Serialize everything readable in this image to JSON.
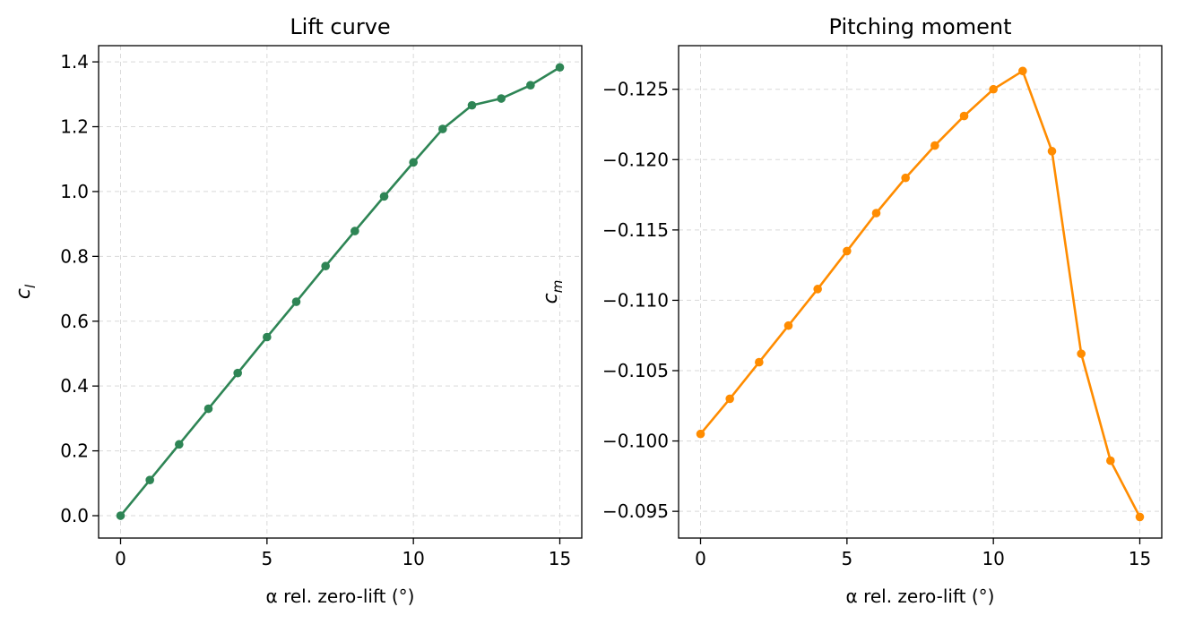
{
  "chart_data": [
    {
      "type": "line",
      "title": "Lift curve",
      "xlabel": "α rel. zero-lift (°)",
      "ylabel": "c",
      "ylabel_sub": "l",
      "xlim": [
        -0.75,
        15.75
      ],
      "ylim": [
        -0.069,
        1.45
      ],
      "xticks": [
        0,
        5,
        10,
        15
      ],
      "xtick_labels": [
        "0",
        "5",
        "10",
        "15"
      ],
      "yticks": [
        0.0,
        0.2,
        0.4,
        0.6,
        0.8,
        1.0,
        1.2,
        1.4
      ],
      "ytick_labels": [
        "0.0",
        "0.2",
        "0.4",
        "0.6",
        "0.8",
        "1.0",
        "1.2",
        "1.4"
      ],
      "grid": true,
      "color": "#2e8555",
      "series": [
        {
          "x": [
            0,
            1,
            2,
            3,
            4,
            5,
            6,
            7,
            8,
            9,
            10,
            11,
            12,
            13,
            14,
            15
          ],
          "y": [
            0.0,
            0.11,
            0.22,
            0.33,
            0.44,
            0.551,
            0.66,
            0.77,
            0.878,
            0.985,
            1.09,
            1.193,
            1.266,
            1.287,
            1.328,
            1.383
          ]
        }
      ]
    },
    {
      "type": "line",
      "title": "Pitching moment",
      "xlabel": "α rel. zero-lift (°)",
      "ylabel": "c",
      "ylabel_sub": "m",
      "y_inverted": true,
      "xlim": [
        -0.75,
        15.75
      ],
      "ylim": [
        -0.0931,
        -0.1281
      ],
      "xticks": [
        0,
        5,
        10,
        15
      ],
      "xtick_labels": [
        "0",
        "5",
        "10",
        "15"
      ],
      "yticks": [
        -0.125,
        -0.12,
        -0.115,
        -0.11,
        -0.105,
        -0.1,
        -0.095
      ],
      "ytick_labels": [
        "−0.125",
        "−0.120",
        "−0.115",
        "−0.110",
        "−0.105",
        "−0.100",
        "−0.095"
      ],
      "grid": true,
      "color": "#ff8c00",
      "series": [
        {
          "x": [
            0,
            1,
            2,
            3,
            4,
            5,
            6,
            7,
            8,
            9,
            10,
            11,
            12,
            13,
            14,
            15
          ],
          "y": [
            -0.1005,
            -0.103,
            -0.1056,
            -0.1082,
            -0.1108,
            -0.1135,
            -0.1162,
            -0.1187,
            -0.121,
            -0.1231,
            -0.125,
            -0.1263,
            -0.1206,
            -0.1062,
            -0.0986,
            -0.0946
          ]
        }
      ]
    }
  ]
}
